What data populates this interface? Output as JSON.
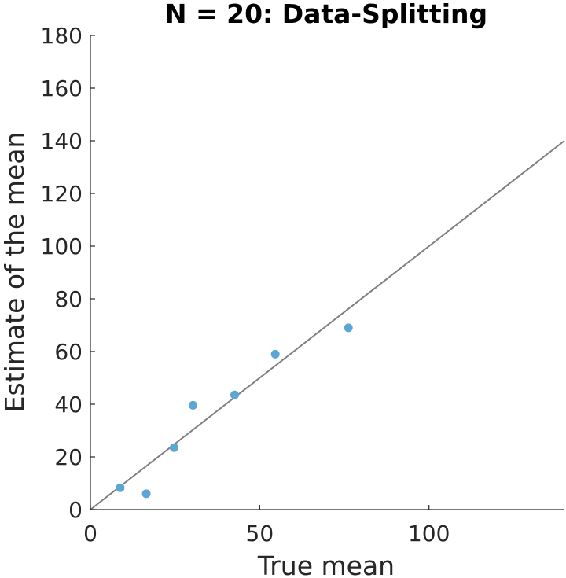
{
  "chart_data": {
    "type": "scatter",
    "title": "N = 20: Data-Splitting",
    "xlabel": "True mean",
    "ylabel": "Estimate of the mean",
    "xlim": [
      0,
      140
    ],
    "ylim": [
      0,
      180
    ],
    "xticks": [
      0,
      50,
      100
    ],
    "yticks": [
      0,
      20,
      40,
      60,
      80,
      100,
      120,
      140,
      160,
      180
    ],
    "grid": false,
    "legend": "none",
    "reference_line": {
      "type": "identity",
      "from": [
        0,
        0
      ],
      "to": [
        140,
        140
      ],
      "color": "#7f7f7f"
    },
    "series": [
      {
        "color": "#5da5d3",
        "points": [
          {
            "x": 8.8,
            "y": 8.3
          },
          {
            "x": 16.5,
            "y": 6.0
          },
          {
            "x": 24.7,
            "y": 23.5
          },
          {
            "x": 30.3,
            "y": 39.6
          },
          {
            "x": 42.6,
            "y": 43.5
          },
          {
            "x": 54.6,
            "y": 59.0
          },
          {
            "x": 76.2,
            "y": 69.0
          }
        ]
      }
    ]
  }
}
